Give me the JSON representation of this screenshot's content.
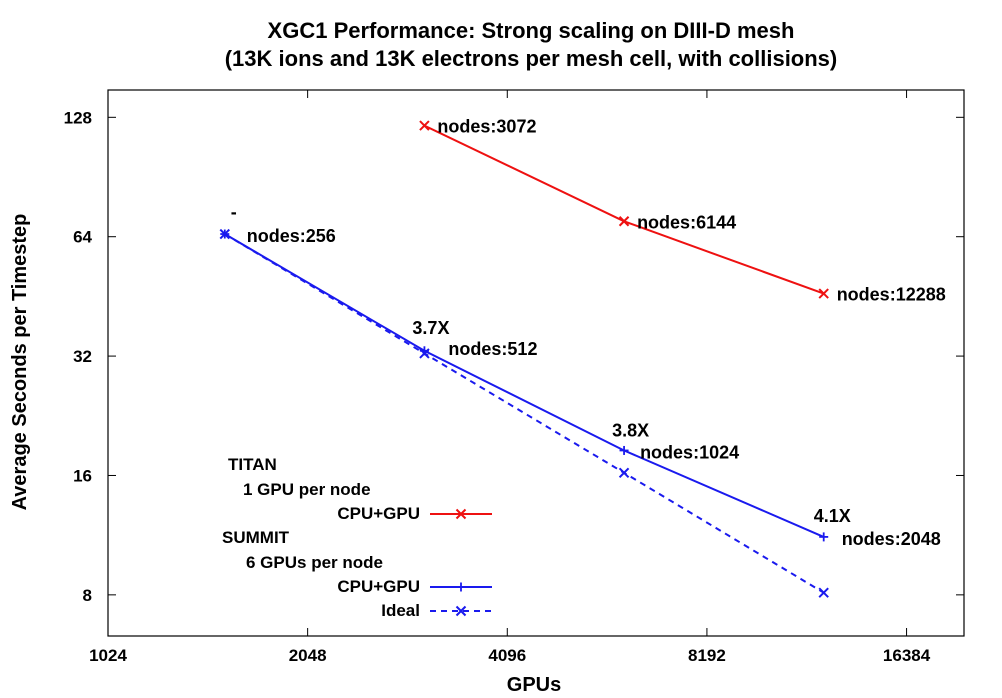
{
  "chart_data": {
    "type": "line",
    "title": "XGC1 Performance: Strong scaling on DIII-D mesh",
    "subtitle": "(13K ions and 13K electrons per mesh cell, with collisions)",
    "xlabel": "GPUs",
    "ylabel": "Average Seconds per Timestep",
    "x_scale": "log2",
    "y_scale": "log2",
    "xlim": [
      1024,
      20000
    ],
    "ylim": [
      6.3,
      150
    ],
    "x_ticks": [
      1024,
      2048,
      4096,
      8192,
      16384
    ],
    "x_tick_labels": [
      "1024",
      "2048",
      "4096",
      "8192",
      "16384"
    ],
    "y_ticks": [
      8,
      16,
      32,
      64,
      128
    ],
    "y_tick_labels": [
      "8",
      "16",
      "32",
      "64",
      "128"
    ],
    "grid": false,
    "legend_position": "bottom-left",
    "legend_groups": [
      {
        "title": "TITAN",
        "subtitle": "1 GPU per node"
      },
      {
        "title": "SUMMIT",
        "subtitle": "6 GPUs per node"
      }
    ],
    "series": [
      {
        "name": "CPU+GPU",
        "group": "TITAN",
        "color": "#ee1111",
        "marker": "x",
        "dash": "solid",
        "x": [
          3072,
          6144,
          12288
        ],
        "y": [
          122,
          70,
          46
        ],
        "labels": [
          "nodes:3072",
          "nodes:6144",
          "nodes:12288"
        ]
      },
      {
        "name": "CPU+GPU",
        "group": "SUMMIT",
        "color": "#1a1aee",
        "marker": "+",
        "dash": "solid",
        "x": [
          1536,
          3072,
          6144,
          12288
        ],
        "y": [
          65,
          33,
          18.5,
          11.2
        ],
        "labels": [
          "nodes:256",
          "nodes:512",
          "nodes:1024",
          "nodes:2048"
        ],
        "speedups": [
          "-",
          "3.7X",
          "3.8X",
          "4.1X"
        ]
      },
      {
        "name": "Ideal",
        "group": "SUMMIT",
        "color": "#1a1aee",
        "marker": "x",
        "dash": "dashed",
        "x": [
          1536,
          3072,
          6144,
          12288
        ],
        "y": [
          65,
          32.5,
          16.25,
          8.1
        ]
      }
    ]
  }
}
